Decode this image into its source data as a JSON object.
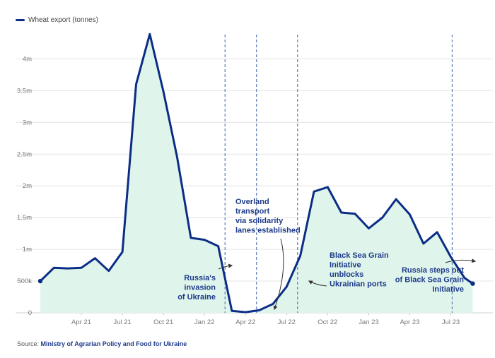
{
  "legend": {
    "label": "Wheat export (tonnes)",
    "icon": "line-swatch-icon"
  },
  "source": {
    "prefix": "Source:",
    "link": "Ministry of Agrarian Policy and Food for Ukraine"
  },
  "colors": {
    "line": "#0b2d86",
    "fill": "#dff5ec",
    "vline": "#5a7bb5",
    "grid": "#e4e4e4",
    "annotation": "#1e3a8a"
  },
  "chart_data": {
    "type": "area",
    "title": "",
    "xlabel": "",
    "ylabel": "",
    "series": [
      {
        "name": "Wheat export (tonnes)",
        "x": [
          "Jan 21",
          "Feb 21",
          "Mar 21",
          "Apr 21",
          "May 21",
          "Jun 21",
          "Jul 21",
          "Aug 21",
          "Sep 21",
          "Oct 21",
          "Nov 21",
          "Dec 21",
          "Jan 22",
          "Feb 22",
          "Mar 22",
          "Apr 22",
          "May 22",
          "Jun 22",
          "Jul 22",
          "Aug 22",
          "Sep 22",
          "Oct 22",
          "Nov 22",
          "Dec 22",
          "Jan 23",
          "Feb 23",
          "Mar 23",
          "Apr 23",
          "May 23",
          "Jun 23",
          "Jul 23",
          "Aug 23",
          "Sep 23"
        ],
        "values": [
          500000,
          710000,
          700000,
          710000,
          860000,
          660000,
          960000,
          3600000,
          4390000,
          3480000,
          2450000,
          1180000,
          1150000,
          1050000,
          30000,
          10000,
          40000,
          140000,
          410000,
          900000,
          1910000,
          1980000,
          1580000,
          1560000,
          1330000,
          1500000,
          1790000,
          1550000,
          1090000,
          1270000,
          880000,
          550000,
          400000
        ]
      }
    ],
    "x_tick_labels": [
      "Apr 21",
      "Jul 21",
      "Oct 21",
      "Jan 22",
      "Apr 22",
      "Jul 22",
      "Oct 22",
      "Jan 23",
      "Apr 23",
      "Jul 23"
    ],
    "y_tick_labels": [
      "0",
      "500k",
      "1m",
      "1.5m",
      "2m",
      "2.5m",
      "3m",
      "3.5m",
      "4m"
    ],
    "ylim": [
      0,
      4400000
    ],
    "xlim_months": [
      0,
      31.6
    ],
    "grid": "horizontal",
    "event_lines": [
      {
        "month": 13.5,
        "name": "Russia's invasion of Ukraine"
      },
      {
        "month": 15.8,
        "name": "Overland transport via solidarity lanes established"
      },
      {
        "month": 18.8,
        "name": "Black Sea Grain Initiative unblocks Ukrainian ports"
      },
      {
        "month": 30.1,
        "name": "Russia steps out of Black Sea Grain Initiative"
      }
    ],
    "annotations": [
      {
        "lines": [
          "Russia's",
          "invasion",
          "of Ukraine"
        ]
      },
      {
        "lines": [
          "Overland",
          "transport",
          "via solidarity",
          "lanes established"
        ]
      },
      {
        "lines": [
          "Black Sea Grain",
          "Initiative",
          "unblocks",
          "Ukrainian ports"
        ]
      },
      {
        "lines": [
          "Russia steps out",
          "of Black Sea Grain",
          "Initiative"
        ]
      }
    ]
  }
}
